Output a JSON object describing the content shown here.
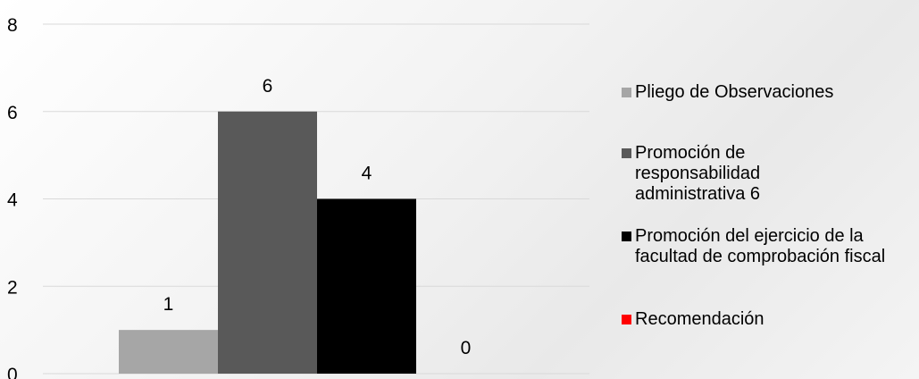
{
  "chart_data": {
    "type": "bar",
    "categories": [
      ""
    ],
    "series": [
      {
        "name": "Pliego de Observaciones",
        "values": [
          1
        ],
        "color": "#a6a6a6"
      },
      {
        "name": "Promoción de responsabilidad administrativa 6",
        "values": [
          6
        ],
        "color": "#595959"
      },
      {
        "name": "Promoción del ejercicio de la facultad de comprobación fiscal",
        "values": [
          4
        ],
        "color": "#000000"
      },
      {
        "name": "Recomendación",
        "values": [
          0
        ],
        "color": "#ff0000"
      }
    ],
    "ylim": [
      0,
      8
    ],
    "yticks": [
      0,
      2,
      4,
      6,
      8
    ],
    "data_labels": [
      "1",
      "6",
      "4",
      "0"
    ],
    "grid": true,
    "legend": "right"
  }
}
